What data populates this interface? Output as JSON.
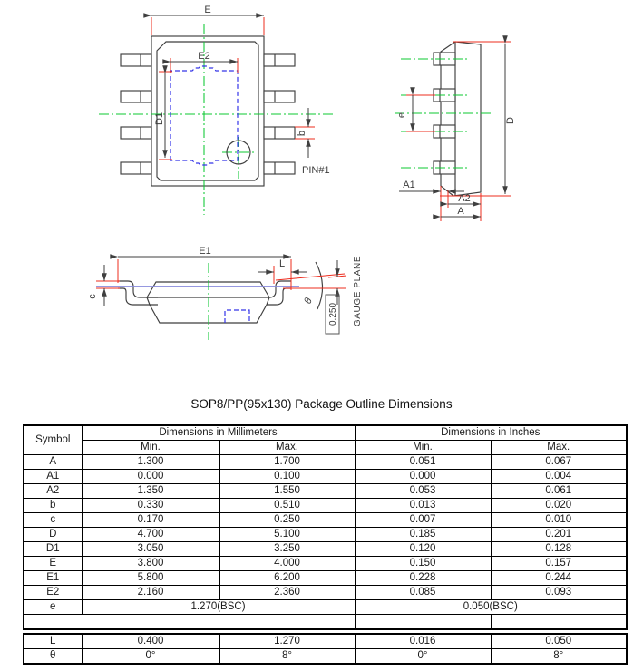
{
  "page": {
    "title": "SOP8/PP(95x130) Package Outline Dimensions"
  },
  "colors": {
    "red_dimension": "#ee2c1e",
    "green_centerline": "#0cc832",
    "blue_pad": "#3434e8",
    "blue_gauge": "#8789dc",
    "outline": "#3f3f3f"
  },
  "drawing": {
    "top_view": {
      "dim_e": "E",
      "dim_e2": "E2",
      "dim_d1": "D1",
      "dim_b": "b",
      "pin1_label": "PIN#1"
    },
    "side_view": {
      "dim_e": "e",
      "dim_d": "D",
      "dim_a1": "A1",
      "dim_a2": "A2",
      "dim_a": "A"
    },
    "front_view": {
      "dim_e1": "E1",
      "dim_l": "L",
      "dim_c": "c",
      "dim_theta": "θ",
      "gauge_value": "0.250",
      "gauge_label": "GAUGE PLANE"
    }
  },
  "table": {
    "header": {
      "symbol": "Symbol",
      "group_mm": "Dimensions in Millimeters",
      "group_in": "Dimensions in Inches",
      "min": "Min.",
      "max": "Max."
    },
    "rows": [
      [
        "A",
        "1.300",
        "1.700",
        "0.051",
        "0.067"
      ],
      [
        "A1",
        "0.000",
        "0.100",
        "0.000",
        "0.004"
      ],
      [
        "A2",
        "1.350",
        "1.550",
        "0.053",
        "0.061"
      ],
      [
        "b",
        "0.330",
        "0.510",
        "0.013",
        "0.020"
      ],
      [
        "c",
        "0.170",
        "0.250",
        "0.007",
        "0.010"
      ],
      [
        "D",
        "4.700",
        "5.100",
        "0.185",
        "0.201"
      ],
      [
        "D1",
        "3.050",
        "3.250",
        "0.120",
        "0.128"
      ],
      [
        "E",
        "3.800",
        "4.000",
        "0.150",
        "0.157"
      ],
      [
        "E1",
        "5.800",
        "6.200",
        "0.228",
        "0.244"
      ],
      [
        "E2",
        "2.160",
        "2.360",
        "0.085",
        "0.093"
      ]
    ],
    "e_row": {
      "symbol": "e",
      "mm": "1.270(BSC)",
      "inches": "0.050(BSC)"
    },
    "extra_rows": [
      [
        "L",
        "0.400",
        "1.270",
        "0.016",
        "0.050"
      ],
      [
        "θ",
        "0°",
        "8°",
        "0°",
        "8°"
      ]
    ]
  }
}
